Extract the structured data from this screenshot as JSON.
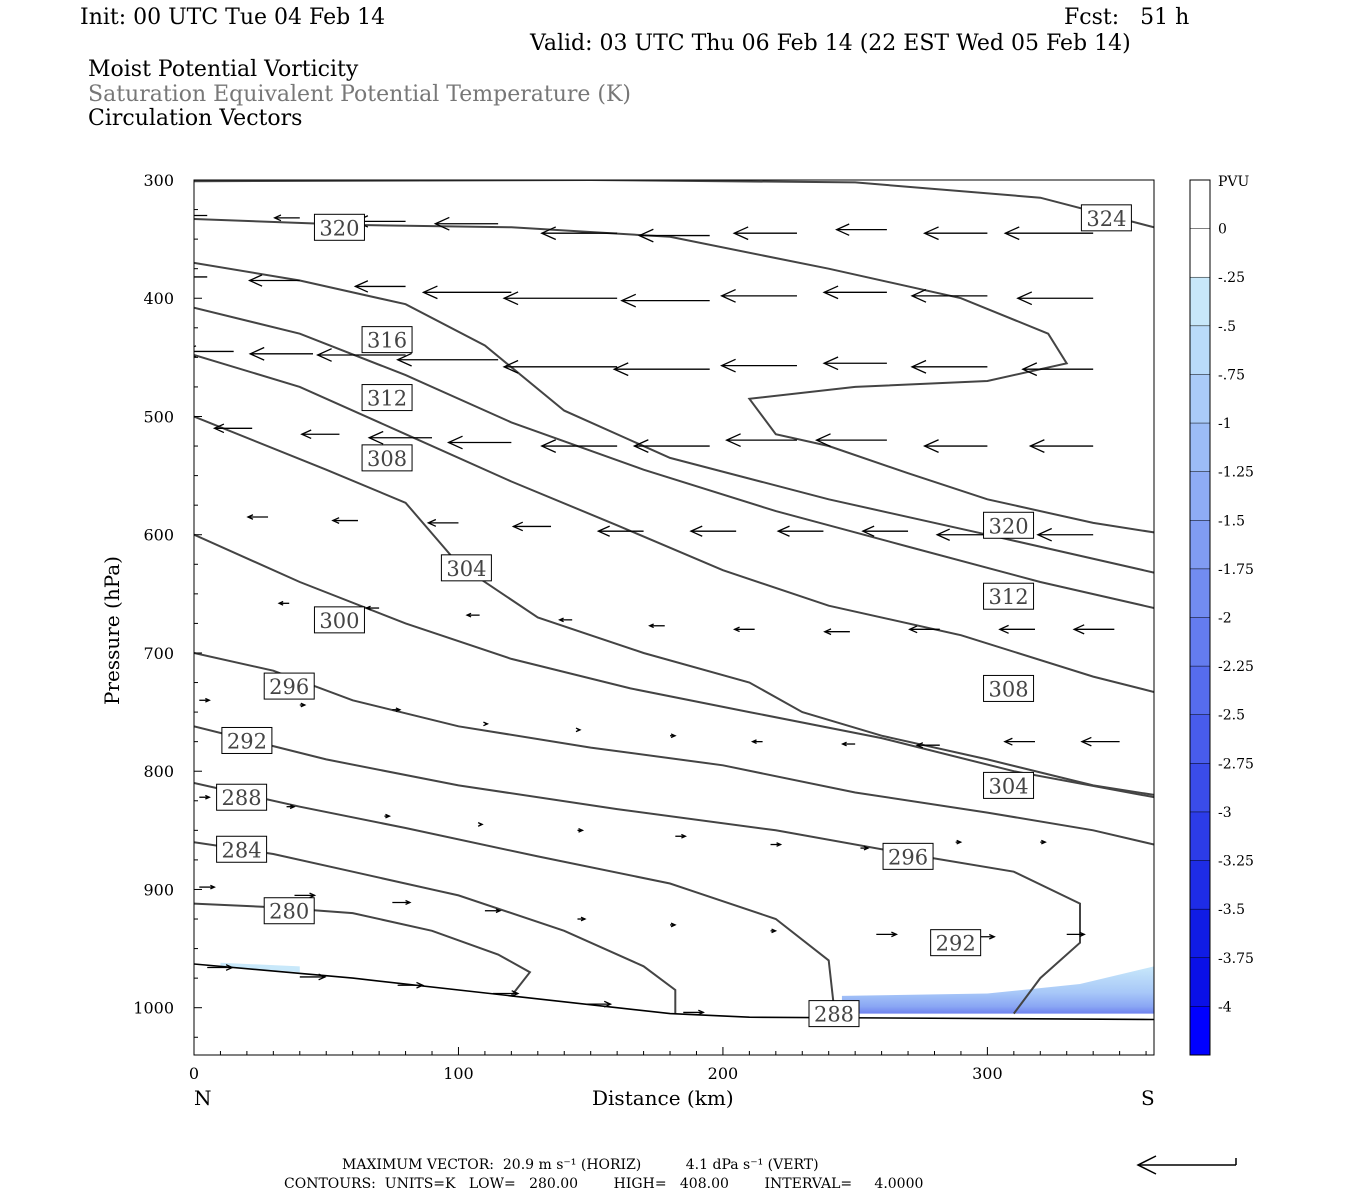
{
  "header": {
    "init": "Init: 00 UTC Tue 04 Feb 14",
    "fcst": "Fcst:   51 h",
    "valid": "Valid: 03 UTC Thu 06 Feb 14 (22 EST Wed 05 Feb 14)",
    "field1": "Moist Potential Vorticity",
    "field2": "Saturation Equivalent Potential Temperature (K)",
    "field3": "Circulation Vectors"
  },
  "chart_data": {
    "type": "cross-section contour",
    "xlabel": "Distance (km)",
    "ylabel": "Pressure (hPa)",
    "x_range": [
      0,
      363
    ],
    "y_range": [
      300,
      1040
    ],
    "x_ticks": [
      "0",
      "100",
      "200",
      "300"
    ],
    "y_ticks": [
      "300",
      "400",
      "500",
      "600",
      "700",
      "800",
      "900",
      "1000"
    ],
    "left_end_label": "N",
    "right_end_label": "S",
    "contour_units": "K",
    "contour_labels": [
      "280",
      "284",
      "288",
      "292",
      "296",
      "300",
      "304",
      "308",
      "312",
      "316",
      "320",
      "324",
      "288",
      "292",
      "296",
      "304",
      "308",
      "312",
      "320"
    ],
    "contours": [
      {
        "level": 280,
        "points": [
          [
            0,
            912
          ],
          [
            30,
            915
          ],
          [
            60,
            920
          ],
          [
            90,
            935
          ],
          [
            115,
            955
          ],
          [
            127,
            970
          ],
          [
            120,
            990
          ]
        ]
      },
      {
        "level": 284,
        "points": [
          [
            0,
            860
          ],
          [
            30,
            870
          ],
          [
            60,
            885
          ],
          [
            100,
            905
          ],
          [
            140,
            935
          ],
          [
            170,
            965
          ],
          [
            182,
            985
          ],
          [
            182,
            1005
          ]
        ]
      },
      {
        "level": 288,
        "points": [
          [
            0,
            810
          ],
          [
            40,
            830
          ],
          [
            80,
            848
          ],
          [
            130,
            872
          ],
          [
            180,
            895
          ],
          [
            220,
            925
          ],
          [
            240,
            960
          ],
          [
            242,
            1000
          ]
        ]
      },
      {
        "level": 292,
        "points": [
          [
            0,
            762
          ],
          [
            50,
            790
          ],
          [
            100,
            812
          ],
          [
            160,
            832
          ],
          [
            220,
            850
          ],
          [
            270,
            870
          ],
          [
            310,
            885
          ],
          [
            335,
            912
          ],
          [
            335,
            945
          ],
          [
            320,
            975
          ],
          [
            310,
            1005
          ]
        ]
      },
      {
        "level": 296,
        "points": [
          [
            0,
            700
          ],
          [
            30,
            715
          ],
          [
            60,
            740
          ],
          [
            100,
            762
          ],
          [
            150,
            780
          ],
          [
            200,
            795
          ],
          [
            250,
            818
          ],
          [
            300,
            835
          ],
          [
            340,
            850
          ],
          [
            363,
            862
          ]
        ]
      },
      {
        "level": 300,
        "points": [
          [
            0,
            600
          ],
          [
            40,
            640
          ],
          [
            80,
            675
          ],
          [
            120,
            705
          ],
          [
            165,
            730
          ],
          [
            210,
            750
          ],
          [
            260,
            772
          ],
          [
            310,
            800
          ],
          [
            363,
            822
          ]
        ]
      },
      {
        "level": 304,
        "points": [
          [
            0,
            500
          ],
          [
            50,
            545
          ],
          [
            80,
            573
          ],
          [
            100,
            625
          ],
          [
            130,
            670
          ],
          [
            170,
            700
          ],
          [
            210,
            725
          ],
          [
            230,
            750
          ],
          [
            260,
            770
          ],
          [
            300,
            790
          ],
          [
            340,
            812
          ],
          [
            363,
            820
          ]
        ]
      },
      {
        "level": 308,
        "points": [
          [
            0,
            448
          ],
          [
            40,
            475
          ],
          [
            80,
            515
          ],
          [
            120,
            555
          ],
          [
            160,
            592
          ],
          [
            200,
            630
          ],
          [
            240,
            660
          ],
          [
            290,
            685
          ],
          [
            340,
            720
          ],
          [
            363,
            733
          ]
        ]
      },
      {
        "level": 312,
        "points": [
          [
            0,
            408
          ],
          [
            40,
            430
          ],
          [
            80,
            465
          ],
          [
            120,
            505
          ],
          [
            170,
            545
          ],
          [
            220,
            580
          ],
          [
            270,
            610
          ],
          [
            320,
            640
          ],
          [
            363,
            662
          ]
        ]
      },
      {
        "level": 316,
        "points": [
          [
            0,
            370
          ],
          [
            40,
            385
          ],
          [
            80,
            405
          ],
          [
            110,
            440
          ],
          [
            140,
            495
          ],
          [
            180,
            535
          ],
          [
            240,
            570
          ],
          [
            300,
            600
          ],
          [
            363,
            632
          ]
        ]
      },
      {
        "level": 320,
        "points": [
          [
            0,
            333
          ],
          [
            60,
            338
          ],
          [
            120,
            340
          ],
          [
            180,
            348
          ],
          [
            240,
            375
          ],
          [
            290,
            400
          ],
          [
            323,
            430
          ],
          [
            330,
            455
          ],
          [
            300,
            470
          ],
          [
            250,
            475
          ],
          [
            210,
            485
          ],
          [
            220,
            515
          ],
          [
            240,
            525
          ],
          [
            270,
            548
          ],
          [
            300,
            570
          ],
          [
            340,
            590
          ],
          [
            363,
            598
          ]
        ]
      },
      {
        "level": 324,
        "points": [
          [
            0,
            301
          ],
          [
            150,
            300
          ],
          [
            250,
            302
          ],
          [
            320,
            315
          ],
          [
            363,
            340
          ]
        ]
      },
      {
        "level": "surface",
        "points": [
          [
            0,
            963
          ],
          [
            60,
            975
          ],
          [
            120,
            990
          ],
          [
            180,
            1005
          ],
          [
            210,
            1008
          ],
          [
            363,
            1010
          ]
        ]
      }
    ],
    "colorbar": {
      "units": "PVU",
      "labels": [
        "0",
        "-.25",
        "-.5",
        "-.75",
        "-1",
        "-1.25",
        "-1.5",
        "-1.75",
        "-2",
        "-2.25",
        "-2.5",
        "-2.75",
        "-3",
        "-3.25",
        "-3.5",
        "-3.75",
        "-4"
      ],
      "colors": [
        "#ffffff",
        "#ffffff",
        "#c8e8fa",
        "#b9dbfa",
        "#aacbf8",
        "#9cbcf6",
        "#8eacf5",
        "#809cf3",
        "#728cf1",
        "#647cef",
        "#566cee",
        "#485cec",
        "#3a4cea",
        "#2c3ce8",
        "#1e2ce6",
        "#101ce4",
        "#0a10e8",
        "#0000ff"
      ]
    },
    "shaded_pv": [
      {
        "range": [
          -0.5,
          -0.25
        ],
        "region": "near-surface 250-363 km"
      },
      {
        "range": [
          -0.75,
          -0.5
        ],
        "region": "near-surface 290-363 km"
      },
      {
        "range": [
          -1.25,
          -0.75
        ],
        "region": "lowest layer 300-363 km"
      }
    ],
    "vectors": [
      {
        "x": 5,
        "p": 330,
        "dx": -18
      },
      {
        "x": 40,
        "p": 332,
        "dx": -10
      },
      {
        "x": 80,
        "p": 335,
        "dx": -20
      },
      {
        "x": 115,
        "p": 337,
        "dx": -25
      },
      {
        "x": 160,
        "p": 345,
        "dx": -30
      },
      {
        "x": 195,
        "p": 347,
        "dx": -28
      },
      {
        "x": 228,
        "p": 345,
        "dx": -25
      },
      {
        "x": 262,
        "p": 342,
        "dx": -20
      },
      {
        "x": 300,
        "p": 345,
        "dx": -25
      },
      {
        "x": 340,
        "p": 345,
        "dx": -35
      },
      {
        "x": 5,
        "p": 382,
        "dx": -30
      },
      {
        "x": 40,
        "p": 385,
        "dx": -20
      },
      {
        "x": 80,
        "p": 390,
        "dx": -20
      },
      {
        "x": 120,
        "p": 395,
        "dx": -35
      },
      {
        "x": 160,
        "p": 400,
        "dx": -45
      },
      {
        "x": 195,
        "p": 402,
        "dx": -35
      },
      {
        "x": 228,
        "p": 398,
        "dx": -30
      },
      {
        "x": 262,
        "p": 395,
        "dx": -25
      },
      {
        "x": 300,
        "p": 398,
        "dx": -30
      },
      {
        "x": 340,
        "p": 400,
        "dx": -30
      },
      {
        "x": 15,
        "p": 445,
        "dx": -20
      },
      {
        "x": 45,
        "p": 447,
        "dx": -25
      },
      {
        "x": 80,
        "p": 448,
        "dx": -35
      },
      {
        "x": 115,
        "p": 452,
        "dx": -40
      },
      {
        "x": 160,
        "p": 458,
        "dx": -45
      },
      {
        "x": 195,
        "p": 460,
        "dx": -38
      },
      {
        "x": 228,
        "p": 457,
        "dx": -30
      },
      {
        "x": 262,
        "p": 455,
        "dx": -25
      },
      {
        "x": 300,
        "p": 458,
        "dx": -30
      },
      {
        "x": 340,
        "p": 460,
        "dx": -28
      },
      {
        "x": 22,
        "p": 510,
        "dx": -15
      },
      {
        "x": 55,
        "p": 515,
        "dx": -15
      },
      {
        "x": 90,
        "p": 518,
        "dx": -25
      },
      {
        "x": 120,
        "p": 522,
        "dx": -25
      },
      {
        "x": 160,
        "p": 525,
        "dx": -30
      },
      {
        "x": 195,
        "p": 525,
        "dx": -30
      },
      {
        "x": 228,
        "p": 520,
        "dx": -28
      },
      {
        "x": 262,
        "p": 520,
        "dx": -28
      },
      {
        "x": 300,
        "p": 525,
        "dx": -25
      },
      {
        "x": 340,
        "p": 525,
        "dx": -25
      },
      {
        "x": 28,
        "p": 585,
        "dx": -8
      },
      {
        "x": 62,
        "p": 588,
        "dx": -10
      },
      {
        "x": 100,
        "p": 590,
        "dx": -12
      },
      {
        "x": 135,
        "p": 593,
        "dx": -15
      },
      {
        "x": 170,
        "p": 597,
        "dx": -18
      },
      {
        "x": 205,
        "p": 597,
        "dx": -18
      },
      {
        "x": 238,
        "p": 597,
        "dx": -18
      },
      {
        "x": 270,
        "p": 597,
        "dx": -18
      },
      {
        "x": 300,
        "p": 600,
        "dx": -20
      },
      {
        "x": 340,
        "p": 600,
        "dx": -22
      },
      {
        "x": 36,
        "p": 658,
        "dx": -4
      },
      {
        "x": 70,
        "p": 662,
        "dx": -5
      },
      {
        "x": 108,
        "p": 668,
        "dx": -5
      },
      {
        "x": 143,
        "p": 672,
        "dx": -5
      },
      {
        "x": 178,
        "p": 677,
        "dx": -6
      },
      {
        "x": 212,
        "p": 680,
        "dx": -8
      },
      {
        "x": 248,
        "p": 682,
        "dx": -10
      },
      {
        "x": 282,
        "p": 680,
        "dx": -12
      },
      {
        "x": 318,
        "p": 680,
        "dx": -14
      },
      {
        "x": 348,
        "p": 680,
        "dx": -16
      },
      {
        "x": 2,
        "p": 740,
        "dx": 4
      },
      {
        "x": 40,
        "p": 744,
        "dx": 2
      },
      {
        "x": 75,
        "p": 748,
        "dx": 3
      },
      {
        "x": 110,
        "p": 760,
        "dx": 1
      },
      {
        "x": 145,
        "p": 765,
        "dx": 1
      },
      {
        "x": 180,
        "p": 770,
        "dx": 2
      },
      {
        "x": 215,
        "p": 775,
        "dx": -4
      },
      {
        "x": 250,
        "p": 777,
        "dx": -5
      },
      {
        "x": 282,
        "p": 778,
        "dx": -9
      },
      {
        "x": 318,
        "p": 775,
        "dx": -12
      },
      {
        "x": 350,
        "p": 775,
        "dx": -15
      },
      {
        "x": 2,
        "p": 822,
        "dx": 4
      },
      {
        "x": 35,
        "p": 830,
        "dx": 3
      },
      {
        "x": 72,
        "p": 838,
        "dx": 2
      },
      {
        "x": 108,
        "p": 845,
        "dx": 1
      },
      {
        "x": 145,
        "p": 850,
        "dx": 2
      },
      {
        "x": 182,
        "p": 855,
        "dx": 4
      },
      {
        "x": 218,
        "p": 862,
        "dx": 4
      },
      {
        "x": 252,
        "p": 865,
        "dx": 3
      },
      {
        "x": 288,
        "p": 860,
        "dx": 2
      },
      {
        "x": 320,
        "p": 860,
        "dx": 2
      },
      {
        "x": 2,
        "p": 898,
        "dx": 6
      },
      {
        "x": 38,
        "p": 905,
        "dx": 8
      },
      {
        "x": 75,
        "p": 911,
        "dx": 7
      },
      {
        "x": 110,
        "p": 918,
        "dx": 6
      },
      {
        "x": 145,
        "p": 925,
        "dx": 3
      },
      {
        "x": 180,
        "p": 930,
        "dx": 2
      },
      {
        "x": 218,
        "p": 935,
        "dx": 2
      },
      {
        "x": 258,
        "p": 938,
        "dx": 8
      },
      {
        "x": 295,
        "p": 940,
        "dx": 8
      },
      {
        "x": 330,
        "p": 938,
        "dx": 7
      },
      {
        "x": 5,
        "p": 966,
        "dx": 10
      },
      {
        "x": 40,
        "p": 974,
        "dx": 10
      },
      {
        "x": 77,
        "p": 981,
        "dx": 10
      },
      {
        "x": 113,
        "p": 988,
        "dx": 10
      },
      {
        "x": 148,
        "p": 997,
        "dx": 10
      },
      {
        "x": 185,
        "p": 1004,
        "dx": 8
      }
    ]
  },
  "footer": {
    "max_vector": "MAXIMUM VECTOR:  20.9 m s⁻¹ (HORIZ)          4.1 dPa s⁻¹ (VERT)",
    "contours": "CONTOURS:  UNITS=K   LOW=   280.00        HIGH=   408.00        INTERVAL=     4.0000"
  }
}
